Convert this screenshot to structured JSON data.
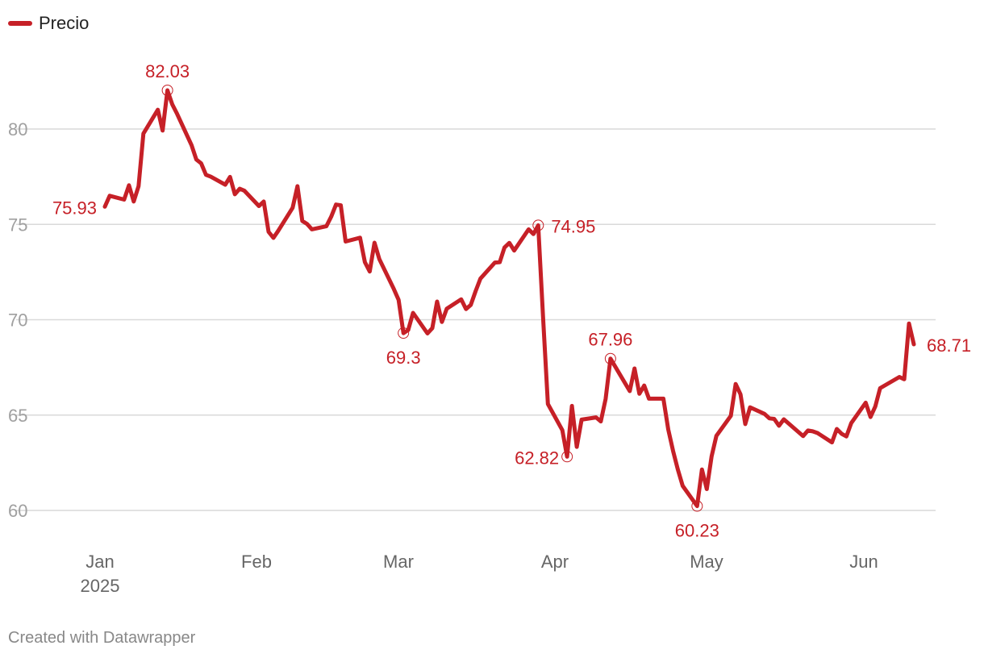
{
  "legend": {
    "label": "Precio",
    "color": "#c62027"
  },
  "footer": {
    "credit": "Created with Datawrapper"
  },
  "colors": {
    "series": "#c62027",
    "grid": "#d9d9d9",
    "tick_text": "#a0a0a0",
    "axis_text": "#666666"
  },
  "chart_data": {
    "type": "line",
    "title": "",
    "xlabel": "",
    "ylabel": "",
    "ylim": [
      60,
      82
    ],
    "yticks": [
      60,
      65,
      70,
      75,
      80
    ],
    "xlim": [
      "2025-01-01",
      "2025-06-13"
    ],
    "xticks": [
      {
        "date": "2025-01-01",
        "label": "Jan",
        "sublabel": "2025"
      },
      {
        "date": "2025-02-01",
        "label": "Feb"
      },
      {
        "date": "2025-03-01",
        "label": "Mar"
      },
      {
        "date": "2025-04-01",
        "label": "Apr"
      },
      {
        "date": "2025-05-01",
        "label": "May"
      },
      {
        "date": "2025-06-01",
        "label": "Jun"
      }
    ],
    "grid": true,
    "legend_position": "top-left",
    "series": [
      {
        "name": "Precio",
        "color": "#c62027",
        "points": [
          [
            "2025-01-02",
            75.93
          ],
          [
            "2025-01-03",
            76.5
          ],
          [
            "2025-01-06",
            76.3
          ],
          [
            "2025-01-07",
            77.05
          ],
          [
            "2025-01-08",
            76.2
          ],
          [
            "2025-01-09",
            77.0
          ],
          [
            "2025-01-10",
            79.76
          ],
          [
            "2025-01-13",
            81.01
          ],
          [
            "2025-01-14",
            79.92
          ],
          [
            "2025-01-15",
            82.03
          ],
          [
            "2025-01-16",
            81.29
          ],
          [
            "2025-01-17",
            80.79
          ],
          [
            "2025-01-20",
            79.15
          ],
          [
            "2025-01-21",
            78.4
          ],
          [
            "2025-01-22",
            78.2
          ],
          [
            "2025-01-23",
            77.6
          ],
          [
            "2025-01-24",
            77.5
          ],
          [
            "2025-01-27",
            77.08
          ],
          [
            "2025-01-28",
            77.49
          ],
          [
            "2025-01-29",
            76.58
          ],
          [
            "2025-01-30",
            76.87
          ],
          [
            "2025-01-31",
            76.76
          ],
          [
            "2025-02-03",
            75.96
          ],
          [
            "2025-02-04",
            76.2
          ],
          [
            "2025-02-05",
            74.61
          ],
          [
            "2025-02-06",
            74.29
          ],
          [
            "2025-02-07",
            74.66
          ],
          [
            "2025-02-10",
            75.87
          ],
          [
            "2025-02-11",
            77.0
          ],
          [
            "2025-02-12",
            75.18
          ],
          [
            "2025-02-13",
            75.02
          ],
          [
            "2025-02-14",
            74.74
          ],
          [
            "2025-02-17",
            74.9
          ],
          [
            "2025-02-18",
            75.4
          ],
          [
            "2025-02-19",
            76.04
          ],
          [
            "2025-02-20",
            76.0
          ],
          [
            "2025-02-21",
            74.1
          ],
          [
            "2025-02-24",
            74.3
          ],
          [
            "2025-02-25",
            73.02
          ],
          [
            "2025-02-26",
            72.53
          ],
          [
            "2025-02-27",
            74.04
          ],
          [
            "2025-02-28",
            73.18
          ],
          [
            "2025-03-03",
            71.62
          ],
          [
            "2025-03-04",
            71.04
          ],
          [
            "2025-03-05",
            69.3
          ],
          [
            "2025-03-06",
            69.46
          ],
          [
            "2025-03-07",
            70.36
          ],
          [
            "2025-03-10",
            69.28
          ],
          [
            "2025-03-11",
            69.56
          ],
          [
            "2025-03-12",
            70.95
          ],
          [
            "2025-03-13",
            69.88
          ],
          [
            "2025-03-14",
            70.58
          ],
          [
            "2025-03-17",
            71.07
          ],
          [
            "2025-03-18",
            70.56
          ],
          [
            "2025-03-19",
            70.78
          ],
          [
            "2025-03-20",
            71.5
          ],
          [
            "2025-03-21",
            72.16
          ],
          [
            "2025-03-24",
            73.0
          ],
          [
            "2025-03-25",
            73.02
          ],
          [
            "2025-03-26",
            73.79
          ],
          [
            "2025-03-27",
            74.03
          ],
          [
            "2025-03-28",
            73.63
          ],
          [
            "2025-03-31",
            74.74
          ],
          [
            "2025-04-01",
            74.49
          ],
          [
            "2025-04-02",
            74.95
          ],
          [
            "2025-04-03",
            70.14
          ],
          [
            "2025-04-04",
            65.58
          ],
          [
            "2025-04-07",
            64.21
          ],
          [
            "2025-04-08",
            62.82
          ],
          [
            "2025-04-09",
            65.48
          ],
          [
            "2025-04-10",
            63.33
          ],
          [
            "2025-04-11",
            64.76
          ],
          [
            "2025-04-14",
            64.88
          ],
          [
            "2025-04-15",
            64.67
          ],
          [
            "2025-04-16",
            65.85
          ],
          [
            "2025-04-17",
            67.96
          ],
          [
            "2025-04-21",
            66.26
          ],
          [
            "2025-04-22",
            67.44
          ],
          [
            "2025-04-23",
            66.12
          ],
          [
            "2025-04-24",
            66.55
          ],
          [
            "2025-04-25",
            65.86
          ],
          [
            "2025-04-28",
            65.86
          ],
          [
            "2025-04-29",
            64.25
          ],
          [
            "2025-04-30",
            63.12
          ],
          [
            "2025-05-01",
            62.13
          ],
          [
            "2025-05-02",
            61.29
          ],
          [
            "2025-05-05",
            60.23
          ],
          [
            "2025-05-06",
            62.15
          ],
          [
            "2025-05-07",
            61.12
          ],
          [
            "2025-05-08",
            62.84
          ],
          [
            "2025-05-09",
            63.91
          ],
          [
            "2025-05-12",
            64.96
          ],
          [
            "2025-05-13",
            66.63
          ],
          [
            "2025-05-14",
            66.09
          ],
          [
            "2025-05-15",
            64.53
          ],
          [
            "2025-05-16",
            65.41
          ],
          [
            "2025-05-19",
            65.06
          ],
          [
            "2025-05-20",
            64.83
          ],
          [
            "2025-05-21",
            64.8
          ],
          [
            "2025-05-22",
            64.44
          ],
          [
            "2025-05-23",
            64.78
          ],
          [
            "2025-05-27",
            63.9
          ],
          [
            "2025-05-28",
            64.19
          ],
          [
            "2025-05-29",
            64.15
          ],
          [
            "2025-05-30",
            64.06
          ],
          [
            "2025-06-02",
            63.57
          ],
          [
            "2025-06-03",
            64.27
          ],
          [
            "2025-06-04",
            64.02
          ],
          [
            "2025-06-05",
            63.88
          ],
          [
            "2025-06-06",
            64.58
          ],
          [
            "2025-06-09",
            65.65
          ],
          [
            "2025-06-10",
            64.9
          ],
          [
            "2025-06-11",
            65.45
          ],
          [
            "2025-06-12",
            66.41
          ],
          [
            "2025-06-16",
            67.0
          ],
          [
            "2025-06-17",
            66.88
          ],
          [
            "2025-06-18",
            69.8
          ],
          [
            "2025-06-19",
            68.71
          ]
        ]
      }
    ],
    "annotations": [
      {
        "date": "2025-01-02",
        "value": 75.93,
        "label": "75.93",
        "anchor": "left",
        "marker": false
      },
      {
        "date": "2025-01-15",
        "value": 82.03,
        "label": "82.03",
        "anchor": "above",
        "marker": true
      },
      {
        "date": "2025-03-05",
        "value": 69.3,
        "label": "69.3",
        "anchor": "below",
        "marker": true
      },
      {
        "date": "2025-04-02",
        "value": 74.95,
        "label": "74.95",
        "anchor": "right",
        "marker": true
      },
      {
        "date": "2025-04-08",
        "value": 62.82,
        "label": "62.82",
        "anchor": "left",
        "marker": true
      },
      {
        "date": "2025-04-17",
        "value": 67.96,
        "label": "67.96",
        "anchor": "above",
        "marker": true
      },
      {
        "date": "2025-05-05",
        "value": 60.23,
        "label": "60.23",
        "anchor": "below",
        "marker": true
      },
      {
        "date": "2025-06-19",
        "value": 68.71,
        "label": "68.71",
        "anchor": "right",
        "marker": false
      }
    ]
  }
}
